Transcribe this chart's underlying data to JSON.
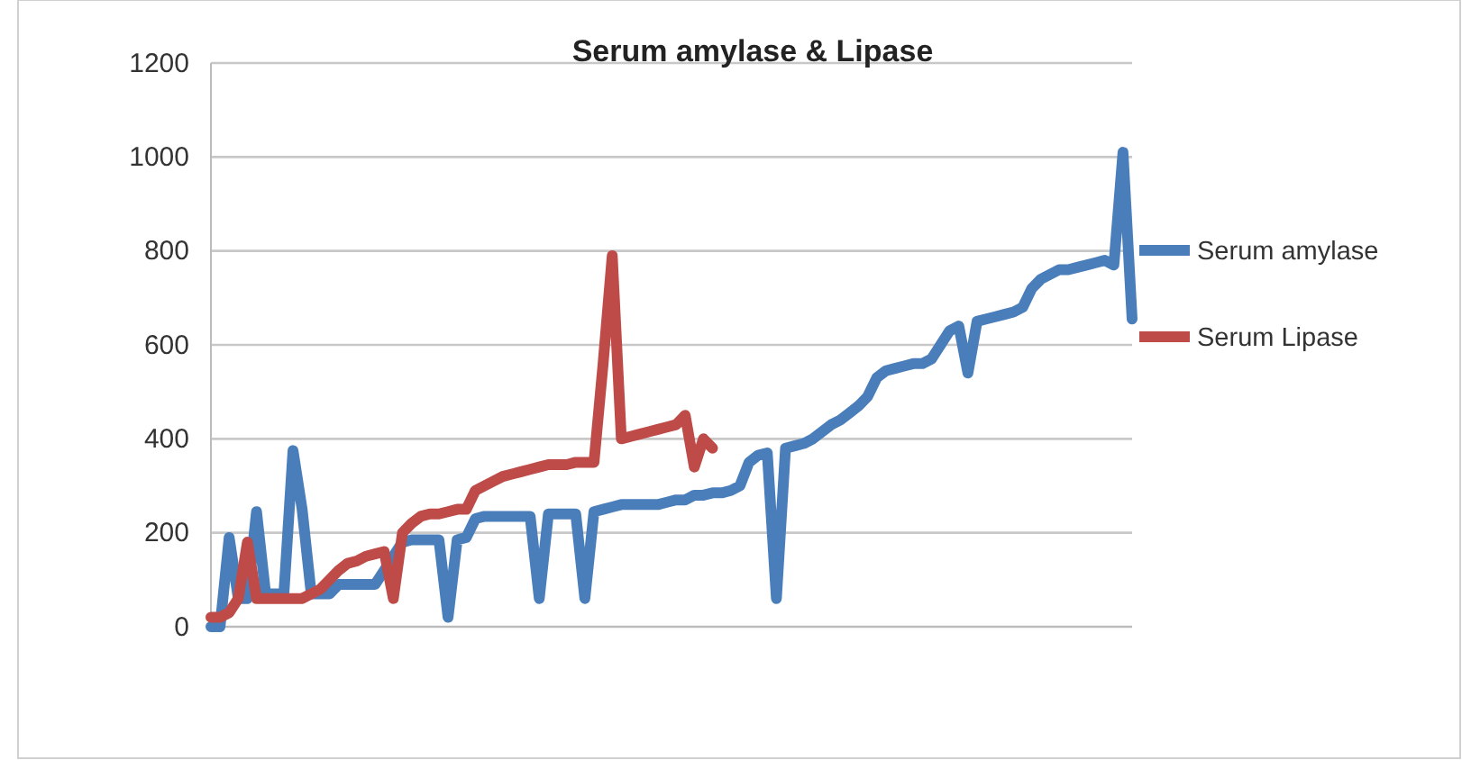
{
  "chart_data": {
    "type": "line",
    "title": "Serum amylase & Lipase",
    "categories": [
      null,
      null,
      null,
      null,
      null,
      null,
      null,
      null,
      null,
      null,
      null,
      null,
      null,
      null,
      null,
      null,
      null,
      null,
      null,
      null,
      null,
      null,
      null,
      null,
      null,
      null,
      null,
      null,
      null,
      null,
      null,
      null,
      null,
      null,
      null,
      null,
      null,
      null,
      null,
      null,
      null,
      null,
      null,
      null,
      null,
      null,
      null,
      null,
      null,
      null,
      null,
      null,
      null,
      null,
      null,
      null,
      null,
      null,
      null,
      null,
      null,
      null,
      null,
      null,
      null,
      null,
      null,
      null,
      null,
      null,
      null,
      null,
      null,
      null,
      null,
      null,
      null,
      null,
      null,
      null,
      null,
      null,
      null,
      null,
      null,
      null,
      null,
      null,
      null,
      null,
      null,
      null,
      null,
      null,
      null,
      null,
      null,
      null,
      null,
      null,
      null,
      null
    ],
    "series": [
      {
        "name": "Serum amylase",
        "color": "#4a7ebb",
        "values": [
          0,
          0,
          190,
          60,
          60,
          245,
          70,
          70,
          70,
          375,
          250,
          70,
          70,
          70,
          90,
          90,
          90,
          90,
          90,
          120,
          150,
          180,
          185,
          185,
          185,
          185,
          20,
          185,
          190,
          230,
          235,
          235,
          235,
          235,
          235,
          235,
          60,
          240,
          240,
          240,
          240,
          60,
          245,
          250,
          255,
          260,
          260,
          260,
          260,
          260,
          265,
          270,
          270,
          280,
          280,
          285,
          285,
          290,
          300,
          350,
          365,
          370,
          60,
          380,
          385,
          390,
          400,
          415,
          430,
          440,
          455,
          470,
          490,
          530,
          545,
          550,
          555,
          560,
          560,
          570,
          600,
          630,
          640,
          540,
          650,
          655,
          660,
          665,
          670,
          680,
          720,
          740,
          750,
          760,
          760,
          765,
          770,
          775,
          780,
          770,
          1010,
          655
        ]
      },
      {
        "name": "Serum Lipase",
        "color": "#be4b48",
        "values": [
          20,
          20,
          30,
          60,
          180,
          60,
          60,
          60,
          60,
          60,
          60,
          70,
          80,
          100,
          120,
          135,
          140,
          150,
          155,
          160,
          60,
          200,
          220,
          235,
          240,
          240,
          245,
          250,
          250,
          290,
          300,
          310,
          320,
          325,
          330,
          335,
          340,
          345,
          345,
          345,
          350,
          350,
          350,
          560,
          790,
          400,
          405,
          410,
          415,
          420,
          425,
          430,
          450,
          340,
          400,
          380,
          null,
          null,
          null,
          null,
          null,
          null,
          null,
          null,
          null,
          null,
          null,
          null,
          null,
          null,
          null,
          null,
          null,
          null,
          null,
          null,
          null,
          null,
          null,
          null,
          null,
          null,
          null,
          null,
          null,
          null,
          null,
          null,
          null,
          null,
          null,
          null,
          null,
          null,
          null,
          null,
          null,
          null,
          null,
          null,
          null,
          null
        ]
      }
    ],
    "ylim": [
      0,
      1200
    ],
    "yticks": [
      0,
      200,
      400,
      600,
      800,
      1000,
      1200
    ],
    "grid": "y",
    "legend": "right",
    "marker": "none",
    "line_style": "solid"
  }
}
